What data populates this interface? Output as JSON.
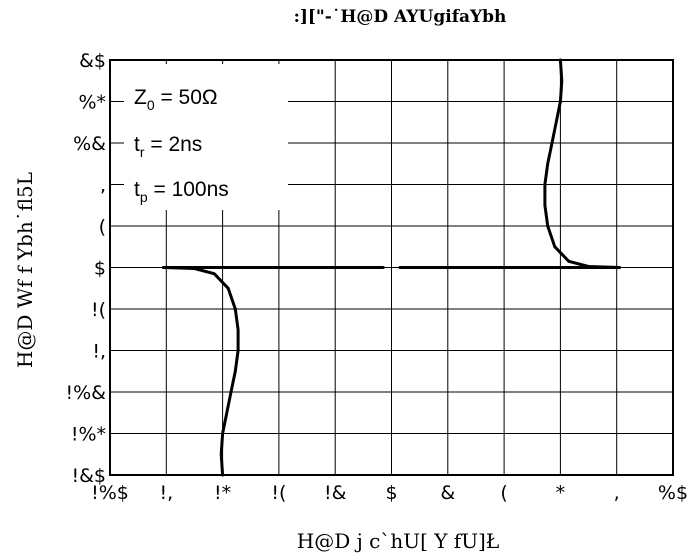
{
  "chart_data": {
    "type": "line",
    "title": ":][\"-˙H@D AYUgifaYbh",
    "xlabel": "H@D j c`hU[ Y fU]Ł",
    "ylabel": "H@D Wf f Ybh˙fl5L",
    "x_tick_labels": [
      "!%$",
      "!,",
      "!*",
      "!(",
      "!&",
      "$",
      "&",
      "(",
      "*",
      ",",
      "%$"
    ],
    "y_tick_labels": [
      "&$",
      "%*",
      "%&",
      ",",
      "(",
      "$",
      "!(",
      "!,",
      "!%&",
      "!%*",
      "!&$"
    ],
    "xlim": [
      -10,
      10
    ],
    "ylim": [
      -20,
      20
    ],
    "grid": true,
    "annotations": [
      {
        "base": "Z",
        "sub": "0",
        "rest": " = 50Ω"
      },
      {
        "base": "t",
        "sub": "r",
        "rest": " = 2ns"
      },
      {
        "base": "t",
        "sub": "p",
        "rest": " = 100ns"
      }
    ],
    "series": [
      {
        "points": [
          [
            6.0,
            20
          ],
          [
            6.05,
            18
          ],
          [
            6.0,
            16
          ],
          [
            5.85,
            14
          ],
          [
            5.7,
            12
          ],
          [
            5.55,
            10
          ],
          [
            5.45,
            8
          ],
          [
            5.45,
            6
          ],
          [
            5.55,
            4
          ],
          [
            5.8,
            2
          ],
          [
            6.3,
            0.6
          ],
          [
            7.0,
            0.1
          ],
          [
            8.1,
            0
          ]
        ]
      },
      {
        "points": [
          [
            -8.1,
            0
          ],
          [
            -7.0,
            -0.1
          ],
          [
            -6.3,
            -0.6
          ],
          [
            -5.8,
            -2
          ],
          [
            -5.55,
            -4
          ],
          [
            -5.45,
            -6
          ],
          [
            -5.45,
            -8
          ],
          [
            -5.55,
            -10
          ],
          [
            -5.7,
            -12
          ],
          [
            -5.85,
            -14
          ],
          [
            -6.0,
            -16
          ],
          [
            -6.05,
            -18
          ],
          [
            -6.0,
            -20
          ]
        ]
      },
      {
        "points": [
          [
            -8.1,
            0
          ],
          [
            -0.3,
            0
          ]
        ]
      },
      {
        "points": [
          [
            0.3,
            0
          ],
          [
            8.1,
            0
          ]
        ]
      }
    ]
  }
}
